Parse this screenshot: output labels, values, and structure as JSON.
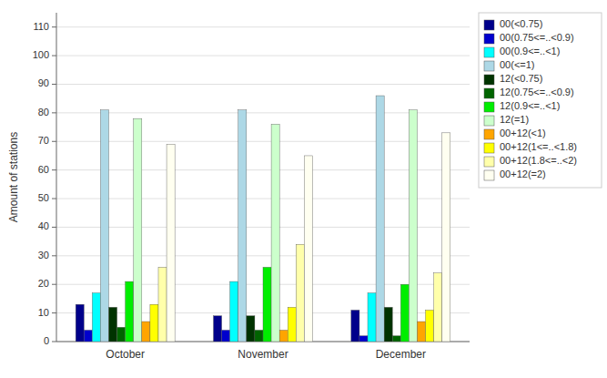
{
  "chart_data": {
    "type": "bar",
    "categories": [
      "October",
      "November",
      "December"
    ],
    "series": [
      {
        "name": "00(<0.75)",
        "color": "#00008B",
        "values": [
          13,
          9,
          11
        ]
      },
      {
        "name": "00(0.75<=..<0.9)",
        "color": "#0000CD",
        "values": [
          4,
          4,
          2
        ]
      },
      {
        "name": "00(0.9<=..<1)",
        "color": "#00FFFF",
        "values": [
          17,
          21,
          17
        ]
      },
      {
        "name": "00(<=1)",
        "color": "#ADD8E6",
        "values": [
          81,
          81,
          86
        ]
      },
      {
        "name": "12(<0.75)",
        "color": "#003300",
        "values": [
          12,
          9,
          12
        ]
      },
      {
        "name": "12(0.75<=..<0.9)",
        "color": "#006400",
        "values": [
          5,
          4,
          2
        ]
      },
      {
        "name": "12(0.9<=..<1)",
        "color": "#00EE00",
        "values": [
          21,
          26,
          20
        ]
      },
      {
        "name": "12(=1)",
        "color": "#CCFFCC",
        "values": [
          78,
          76,
          81
        ]
      },
      {
        "name": "00+12(<1)",
        "color": "#FFA500",
        "values": [
          7,
          4,
          7
        ]
      },
      {
        "name": "00+12(1<=..<1.8)",
        "color": "#FFFF00",
        "values": [
          13,
          12,
          11
        ]
      },
      {
        "name": "00+12(1.8<=..<2)",
        "color": "#FFFFAA",
        "values": [
          26,
          34,
          24
        ]
      },
      {
        "name": "00+12(=2)",
        "color": "#FFFFF0",
        "values": [
          69,
          65,
          73
        ]
      }
    ],
    "ylabel": "Amount of stations",
    "ylim": [
      0,
      115
    ],
    "yticks": [
      0,
      10,
      20,
      30,
      40,
      50,
      60,
      70,
      80,
      90,
      100,
      110
    ],
    "grid": true,
    "legend": "right"
  }
}
